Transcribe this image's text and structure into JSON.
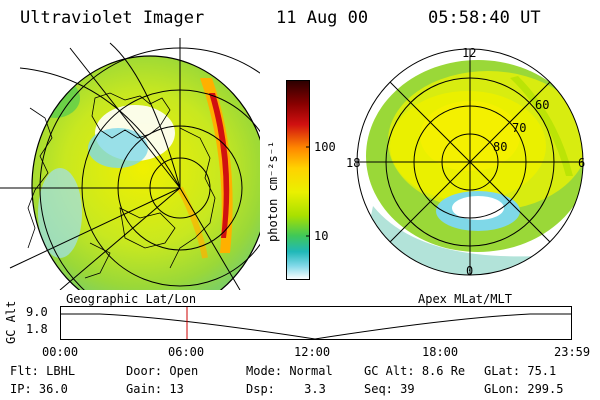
{
  "header": {
    "instrument": "Ultraviolet Imager",
    "date": "11 Aug 00",
    "time": "05:58:40 UT"
  },
  "colorbar": {
    "unit_label": "photon cm⁻²s⁻¹",
    "ticks": [
      "100",
      "10"
    ],
    "colors": [
      "#2b0000",
      "#8a0000",
      "#d01010",
      "#ff8800",
      "#ffd200",
      "#eaf000",
      "#a8e000",
      "#40c858",
      "#20b8b8",
      "#7fd8e8",
      "#ffffff"
    ]
  },
  "left_panel": {
    "caption": "Geographic Lat/Lon"
  },
  "right_panel": {
    "caption": "Apex MLat/MLT",
    "mlt_labels": {
      "top": "12",
      "bottom": "0",
      "left": "18",
      "right": "6"
    },
    "lat_labels": [
      "60",
      "70",
      "80"
    ]
  },
  "altitude_plot": {
    "ylabel": "GC Alt",
    "yticks": [
      "9.0",
      "1.8"
    ],
    "xticks": [
      "00:00",
      "06:00",
      "12:00",
      "18:00",
      "23:59"
    ],
    "line_color": "#000000",
    "marker_color": "#cc0000"
  },
  "status": {
    "row1": [
      {
        "label": "Flt:",
        "value": "LBHL"
      },
      {
        "label": "Door:",
        "value": "Open"
      },
      {
        "label": "Mode:",
        "value": "Normal"
      },
      {
        "label": "GC Alt:",
        "value": "8.6 Re"
      },
      {
        "label": "GLat:",
        "value": "75.1"
      }
    ],
    "row2": [
      {
        "label": "IP:",
        "value": "36.0"
      },
      {
        "label": "Gain:",
        "value": "13"
      },
      {
        "label": "Dsp:",
        "value": "3.3"
      },
      {
        "label": "Seq:",
        "value": "39"
      },
      {
        "label": "GLon:",
        "value": "299.5"
      }
    ]
  }
}
